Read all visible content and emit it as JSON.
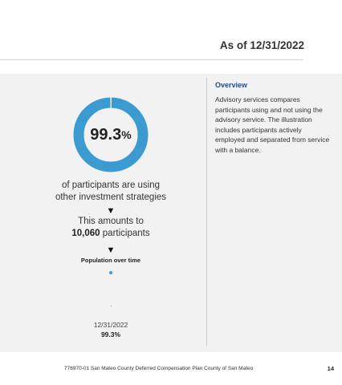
{
  "header": {
    "as_of": "As of 12/31/2022"
  },
  "stat": {
    "value": "99.3",
    "unit": "%",
    "fraction": 0.993,
    "color": "#3b9bd0",
    "track_color": "#ffffff",
    "line1": "of participants are using",
    "line2": "other investment strategies",
    "amounts_label": "This amounts to",
    "participants_count": "10,060",
    "participants_word": "participants"
  },
  "population": {
    "title": "Population over time",
    "date": "12/31/2022",
    "pct": "99.3%"
  },
  "overview": {
    "title": "Overview",
    "body": "Advisory services compares participants using and not using the advisory service. The illustration includes participants actively employed and separated from service with a balance."
  },
  "footer": {
    "text": "776970-01 San Mateo County Deferred Compensation Plan County of San Mateo",
    "page": "14"
  }
}
